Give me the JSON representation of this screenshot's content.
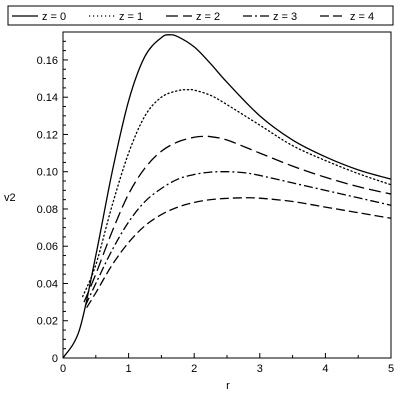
{
  "chart_data": {
    "type": "line",
    "title": "",
    "xlabel": "r",
    "ylabel": "v2",
    "xlim": [
      0,
      5
    ],
    "ylim": [
      0,
      0.175
    ],
    "x_ticks": [
      "0",
      "1",
      "2",
      "3",
      "4",
      "5"
    ],
    "y_ticks": [
      "0",
      "0.02",
      "0.04",
      "0.06",
      "0.08",
      "0.10",
      "0.12",
      "0.14",
      "0.16"
    ],
    "grid": false,
    "legend_position": "top",
    "series": [
      {
        "name": "z = 0",
        "dash": "solid",
        "x": [
          0,
          0.25,
          0.5,
          0.75,
          1.0,
          1.25,
          1.5,
          1.62,
          1.75,
          2.0,
          2.25,
          2.5,
          3.0,
          3.5,
          4.0,
          4.5,
          5.0
        ],
        "y": [
          0,
          0.015,
          0.055,
          0.1,
          0.138,
          0.162,
          0.172,
          0.1735,
          0.1725,
          0.167,
          0.158,
          0.148,
          0.13,
          0.117,
          0.108,
          0.101,
          0.096
        ]
      },
      {
        "name": "z = 1",
        "dash": "dotted",
        "x": [
          0.3,
          0.5,
          0.75,
          1.0,
          1.25,
          1.5,
          1.75,
          1.9,
          2.0,
          2.25,
          2.5,
          3.0,
          3.5,
          4.0,
          4.5,
          5.0
        ],
        "y": [
          0.033,
          0.05,
          0.082,
          0.11,
          0.13,
          0.14,
          0.1435,
          0.144,
          0.1438,
          0.141,
          0.136,
          0.125,
          0.114,
          0.106,
          0.099,
          0.093
        ]
      },
      {
        "name": "z = 2",
        "dash": "long-dash",
        "x": [
          0.32,
          0.5,
          0.75,
          1.0,
          1.25,
          1.5,
          1.75,
          2.0,
          2.15,
          2.25,
          2.5,
          3.0,
          3.5,
          4.0,
          4.5,
          5.0
        ],
        "y": [
          0.03,
          0.045,
          0.068,
          0.088,
          0.102,
          0.111,
          0.116,
          0.1185,
          0.119,
          0.1188,
          0.117,
          0.11,
          0.103,
          0.097,
          0.092,
          0.088
        ]
      },
      {
        "name": "z = 3",
        "dash": "dash-dot",
        "x": [
          0.34,
          0.5,
          0.75,
          1.0,
          1.25,
          1.5,
          1.75,
          2.0,
          2.25,
          2.5,
          2.75,
          3.0,
          3.5,
          4.0,
          4.5,
          5.0
        ],
        "y": [
          0.028,
          0.04,
          0.058,
          0.073,
          0.084,
          0.091,
          0.096,
          0.0985,
          0.0998,
          0.1,
          0.0995,
          0.098,
          0.094,
          0.09,
          0.086,
          0.082
        ]
      },
      {
        "name": "z = 4",
        "dash": "dash",
        "x": [
          0.36,
          0.5,
          0.75,
          1.0,
          1.25,
          1.5,
          1.75,
          2.0,
          2.25,
          2.5,
          2.75,
          3.0,
          3.5,
          4.0,
          4.5,
          5.0
        ],
        "y": [
          0.027,
          0.035,
          0.05,
          0.062,
          0.071,
          0.077,
          0.081,
          0.0835,
          0.085,
          0.0857,
          0.086,
          0.0858,
          0.084,
          0.081,
          0.078,
          0.075
        ]
      }
    ]
  }
}
